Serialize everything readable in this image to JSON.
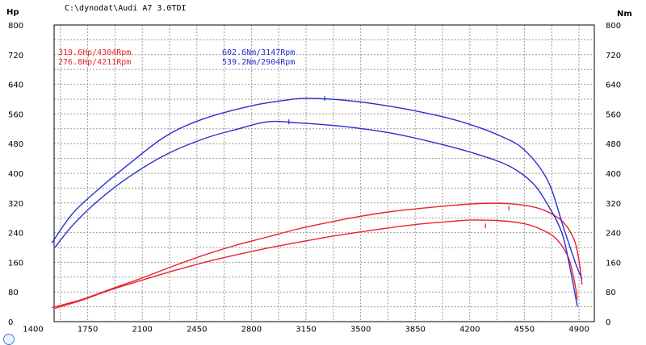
{
  "title": "C:\\dynodat\\Audi A7 3.0TDI",
  "left_unit": "Hp",
  "right_unit": "Nm",
  "colors": {
    "power": "#e8242a",
    "torque": "#2b2fd0",
    "grid": "#9a9a9a"
  },
  "annotations": {
    "power": [
      "319.6Hp/4304Rpm",
      "276.8Hp/4211Rpm"
    ],
    "torque": [
      "602.6Nm/3147Rpm",
      "539.2Nm/2904Rpm"
    ]
  },
  "chart_data": {
    "type": "line",
    "x_ticks": [
      1400,
      1750,
      2100,
      2450,
      2800,
      3150,
      3500,
      3850,
      4200,
      4550,
      4900
    ],
    "y_ticks": [
      0,
      80,
      160,
      240,
      320,
      400,
      480,
      560,
      640,
      720,
      800
    ],
    "xlim": [
      1400,
      4950
    ],
    "ylim": [
      0,
      800
    ],
    "grid": true,
    "series": [
      {
        "kind": "power",
        "x": [
          1520,
          1700,
          1900,
          2100,
          2300,
          2500,
          2700,
          2900,
          3100,
          3300,
          3500,
          3700,
          3900,
          4100,
          4300,
          4450,
          4600,
          4700,
          4800,
          4870,
          4900,
          4920
        ],
        "y": [
          38,
          58,
          88,
          118,
          150,
          180,
          206,
          228,
          250,
          268,
          284,
          297,
          306,
          314,
          319,
          318,
          310,
          296,
          268,
          220,
          165,
          100
        ]
      },
      {
        "kind": "power",
        "x": [
          1540,
          1700,
          1900,
          2100,
          2300,
          2500,
          2700,
          2900,
          3100,
          3300,
          3500,
          3700,
          3900,
          4100,
          4211,
          4400,
          4550,
          4650,
          4750,
          4830,
          4870,
          4890
        ],
        "y": [
          36,
          56,
          86,
          112,
          137,
          160,
          180,
          198,
          214,
          229,
          242,
          254,
          264,
          271,
          274,
          272,
          264,
          250,
          225,
          175,
          110,
          60
        ]
      },
      {
        "kind": "torque",
        "x": [
          1520,
          1650,
          1800,
          2000,
          2250,
          2500,
          2800,
          3000,
          3147,
          3400,
          3700,
          4000,
          4200,
          4400,
          4550,
          4700,
          4800,
          4880,
          4920
        ],
        "y": [
          212,
          290,
          350,
          420,
          500,
          548,
          582,
          596,
          602,
          597,
          580,
          555,
          532,
          500,
          463,
          380,
          255,
          155,
          115
        ]
      },
      {
        "kind": "torque",
        "x": [
          1540,
          1650,
          1800,
          2000,
          2250,
          2500,
          2700,
          2904,
          3100,
          3400,
          3700,
          4000,
          4250,
          4450,
          4600,
          4700,
          4790,
          4840,
          4890
        ],
        "y": [
          200,
          258,
          320,
          386,
          450,
          494,
          518,
          539,
          536,
          526,
          508,
          480,
          451,
          420,
          375,
          315,
          240,
          150,
          40
        ]
      }
    ],
    "markers": [
      {
        "kind": "power",
        "x": 4450,
        "y": 306
      },
      {
        "kind": "power",
        "x": 4300,
        "y": 258
      },
      {
        "kind": "torque",
        "x": 3270,
        "y": 602
      },
      {
        "kind": "torque",
        "x": 3040,
        "y": 539
      }
    ]
  }
}
